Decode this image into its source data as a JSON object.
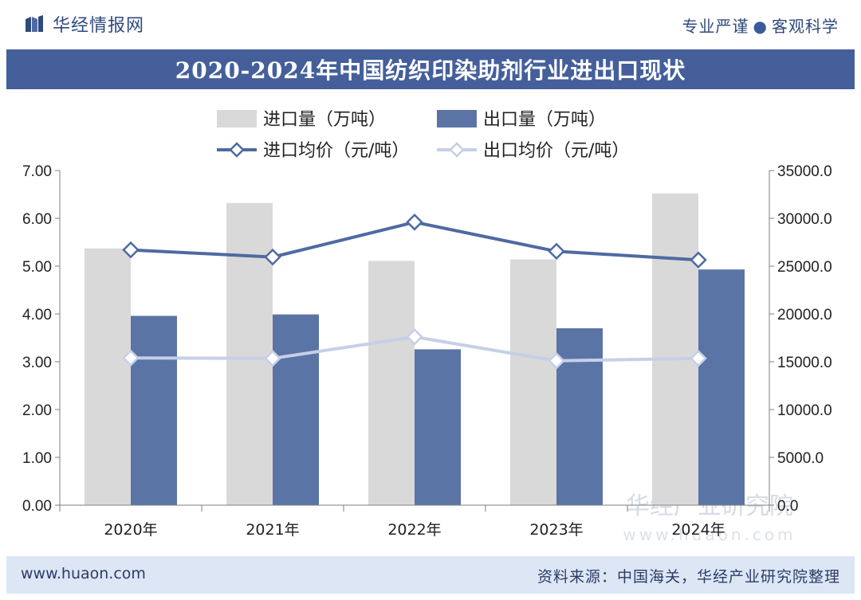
{
  "header": {
    "brand": "华经情报网",
    "slogan_left": "专业严谨",
    "slogan_right": "客观科学"
  },
  "title": "2020-2024年中国纺织印染助剂行业进出口现状",
  "watermark": {
    "text": "华经产业研究院",
    "url": "www.huaon.com"
  },
  "footer": {
    "url": "www.huaon.com",
    "source": "资料来源：中国海关，华经产业研究院整理"
  },
  "colors": {
    "import_bar": "#d9d9d9",
    "export_bar": "#5b74a6",
    "import_price_line": "#4f6aa2",
    "export_price_line": "#c5d0e6",
    "title_bg": "#445f9a",
    "footer_bg": "#dde6f5"
  },
  "chart_data": {
    "type": "bar",
    "categories": [
      "2020年",
      "2021年",
      "2022年",
      "2023年",
      "2024年"
    ],
    "series": [
      {
        "name": "进口量（万吨）",
        "type": "bar",
        "axis": "left",
        "values": [
          5.37,
          6.32,
          5.11,
          5.14,
          6.52
        ]
      },
      {
        "name": "出口量（万吨）",
        "type": "bar",
        "axis": "left",
        "values": [
          3.96,
          3.99,
          3.26,
          3.7,
          4.93
        ]
      },
      {
        "name": "进口均价（元/吨）",
        "type": "line",
        "axis": "right",
        "values": [
          26700,
          25950,
          29600,
          26550,
          25650
        ]
      },
      {
        "name": "出口均价（元/吨）",
        "type": "line",
        "axis": "right",
        "values": [
          15400,
          15350,
          17600,
          15100,
          15350
        ]
      }
    ],
    "y_left": {
      "min": 0,
      "max": 7,
      "step": 1,
      "ticks": [
        "0.00",
        "1.00",
        "2.00",
        "3.00",
        "4.00",
        "5.00",
        "6.00",
        "7.00"
      ]
    },
    "y_right": {
      "min": 0,
      "max": 35000,
      "step": 5000,
      "ticks": [
        "0.0",
        "5000.0",
        "10000.0",
        "15000.0",
        "20000.0",
        "25000.0",
        "30000.0",
        "35000.0"
      ]
    },
    "legend_position": "top",
    "grid": false
  }
}
